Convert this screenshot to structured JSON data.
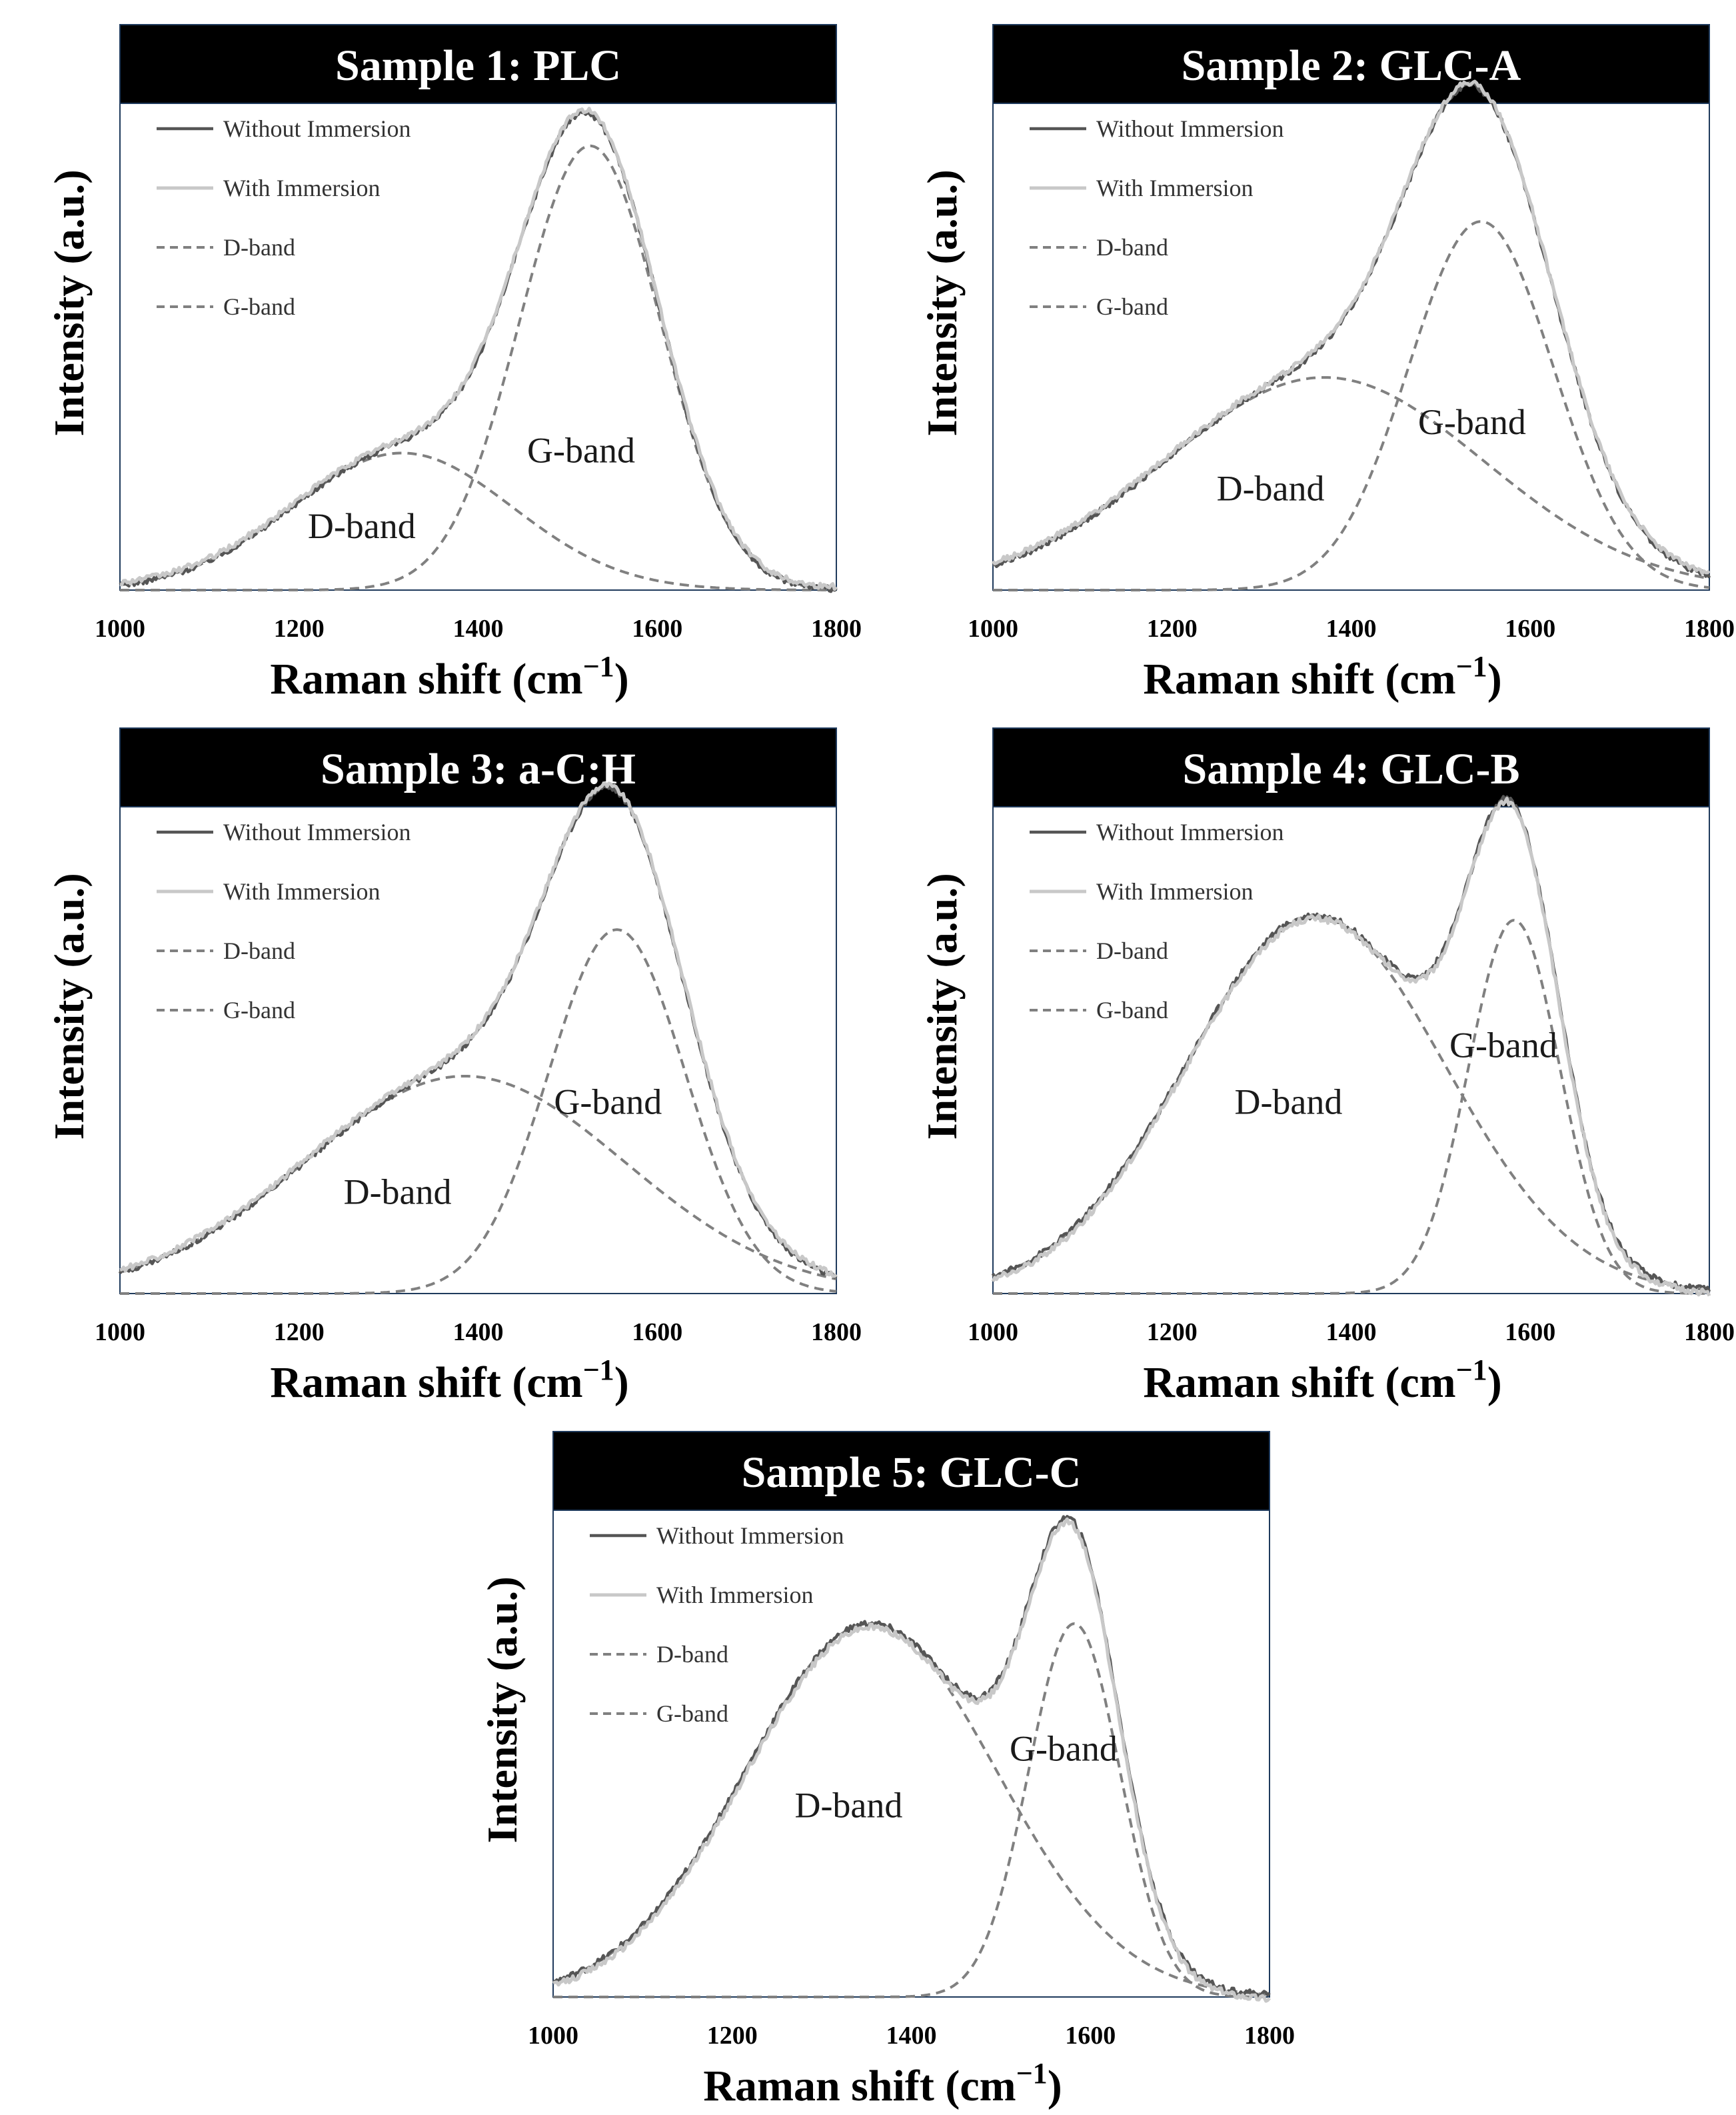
{
  "figure": {
    "legend": [
      "Without Immersion",
      "With Immersion",
      "D-band",
      "G-band"
    ],
    "xlabel": "Raman shift (cm",
    "xlabel_sup": "−1",
    "xlabel_close": ")",
    "ylabel": "Intensity (a.u.)",
    "xticks": [
      "1000",
      "1200",
      "1400",
      "1600",
      "1800"
    ]
  },
  "colors": {
    "title_bg": "#000000",
    "title_fg": "#ffffff",
    "without_immersion": "#555555",
    "with_immersion": "#c8c8c8",
    "band_fit": "#808080",
    "axis": "#000000"
  },
  "chart_data": [
    {
      "type": "line",
      "title": "Sample 1: PLC",
      "xlabel": "Raman shift (cm−1)",
      "ylabel": "Intensity (a.u.)",
      "xlim": [
        1000,
        1800
      ],
      "ylim": [
        0,
        1.03
      ],
      "band_labels": [
        {
          "text": "D-band",
          "x": 1270,
          "y": 0.11
        },
        {
          "text": "G-band",
          "x": 1515,
          "y": 0.27
        }
      ],
      "series": [
        {
          "name": "D-band",
          "style": "dashed",
          "center": 1315,
          "fwhm": 290,
          "amplitude": 0.29,
          "baseline": 0.0
        },
        {
          "name": "G-band",
          "style": "dashed",
          "center": 1525,
          "fwhm": 185,
          "amplitude": 0.94,
          "baseline": 0.0
        },
        {
          "name": "Without Immersion",
          "style": "solid",
          "offset": 0.0,
          "noise": 0.006
        },
        {
          "name": "With Immersion",
          "style": "solid",
          "offset": 0.005,
          "noise": 0.006
        }
      ]
    },
    {
      "type": "line",
      "title": "Sample 2: GLC-A",
      "xlabel": "Raman shift (cm−1)",
      "ylabel": "Intensity (a.u.)",
      "xlim": [
        1000,
        1800
      ],
      "ylim": [
        0,
        1.03
      ],
      "band_labels": [
        {
          "text": "D-band",
          "x": 1310,
          "y": 0.19
        },
        {
          "text": "G-band",
          "x": 1535,
          "y": 0.33
        }
      ],
      "series": [
        {
          "name": "D-band",
          "style": "dashed",
          "center": 1370,
          "fwhm": 420,
          "amplitude": 0.45,
          "baseline": 0.0
        },
        {
          "name": "G-band",
          "style": "dashed",
          "center": 1545,
          "fwhm": 190,
          "amplitude": 0.78,
          "baseline": 0.0
        },
        {
          "name": "Without Immersion",
          "style": "solid",
          "offset": 0.0,
          "noise": 0.006
        },
        {
          "name": "With Immersion",
          "style": "solid",
          "offset": 0.005,
          "noise": 0.006
        }
      ]
    },
    {
      "type": "line",
      "title": "Sample 3: a-C:H",
      "xlabel": "Raman shift (cm−1)",
      "ylabel": "Intensity (a.u.)",
      "xlim": [
        1000,
        1800
      ],
      "ylim": [
        0,
        1.03
      ],
      "band_labels": [
        {
          "text": "D-band",
          "x": 1310,
          "y": 0.19
        },
        {
          "text": "G-band",
          "x": 1545,
          "y": 0.38
        }
      ],
      "series": [
        {
          "name": "D-band",
          "style": "dashed",
          "center": 1385,
          "fwhm": 420,
          "amplitude": 0.46,
          "baseline": 0.0
        },
        {
          "name": "G-band",
          "style": "dashed",
          "center": 1555,
          "fwhm": 180,
          "amplitude": 0.77,
          "baseline": 0.0
        },
        {
          "name": "Without Immersion",
          "style": "solid",
          "offset": 0.0,
          "noise": 0.006
        },
        {
          "name": "With Immersion",
          "style": "solid",
          "offset": 0.005,
          "noise": 0.006
        }
      ]
    },
    {
      "type": "line",
      "title": "Sample 4: GLC-B",
      "xlabel": "Raman shift (cm−1)",
      "ylabel": "Intensity (a.u.)",
      "xlim": [
        1000,
        1800
      ],
      "ylim": [
        0,
        1.03
      ],
      "band_labels": [
        {
          "text": "D-band",
          "x": 1330,
          "y": 0.38
        },
        {
          "text": "G-band",
          "x": 1570,
          "y": 0.5
        }
      ],
      "series": [
        {
          "name": "D-band",
          "style": "dashed",
          "center": 1360,
          "fwhm": 340,
          "amplitude": 0.8,
          "baseline": 0.0
        },
        {
          "name": "G-band",
          "style": "dashed",
          "center": 1582,
          "fwhm": 120,
          "amplitude": 0.79,
          "baseline": 0.0
        },
        {
          "name": "Without Immersion",
          "style": "solid",
          "offset": 0.0,
          "noise": 0.007
        },
        {
          "name": "With Immersion",
          "style": "solid",
          "offset": -0.006,
          "noise": 0.007
        }
      ]
    },
    {
      "type": "line",
      "title": "Sample 5: GLC-C",
      "xlabel": "Raman shift (cm−1)",
      "ylabel": "Intensity (a.u.)",
      "xlim": [
        1000,
        1800
      ],
      "ylim": [
        0,
        1.03
      ],
      "band_labels": [
        {
          "text": "D-band",
          "x": 1330,
          "y": 0.38
        },
        {
          "text": "G-band",
          "x": 1570,
          "y": 0.5
        }
      ],
      "series": [
        {
          "name": "D-band",
          "style": "dashed",
          "center": 1355,
          "fwhm": 330,
          "amplitude": 0.79,
          "baseline": 0.0
        },
        {
          "name": "G-band",
          "style": "dashed",
          "center": 1582,
          "fwhm": 120,
          "amplitude": 0.79,
          "baseline": 0.0
        },
        {
          "name": "Without Immersion",
          "style": "solid",
          "offset": 0.0,
          "noise": 0.007
        },
        {
          "name": "With Immersion",
          "style": "solid",
          "offset": -0.008,
          "noise": 0.007
        }
      ]
    }
  ]
}
